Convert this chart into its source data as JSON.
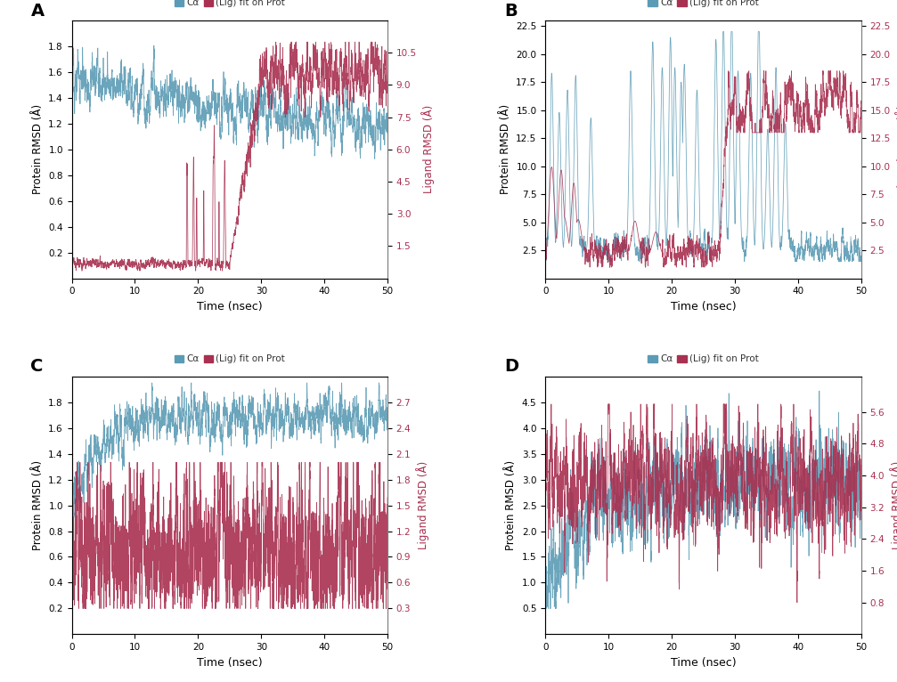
{
  "blue_color": "#5b9bb5",
  "red_color": "#a83050",
  "bg_color": "#ffffff",
  "spine_color": "#808080",
  "xlabel": "Time (nsec)",
  "ylabel_left": "Protein RMSD (Å)",
  "ylabel_right": "Ligand RMSD (Å)",
  "xlims": [
    0,
    50
  ],
  "panel_A": {
    "prot_ylim": [
      0.0,
      2.0
    ],
    "prot_yticks": [
      0.2,
      0.4,
      0.6,
      0.8,
      1.0,
      1.2,
      1.4,
      1.6,
      1.8
    ],
    "lig_ylim": [
      0.0,
      12.0
    ],
    "lig_yticks": [
      1.5,
      3.0,
      4.5,
      6.0,
      7.5,
      9.0,
      10.5
    ]
  },
  "panel_B": {
    "prot_ylim": [
      0.0,
      23.0
    ],
    "prot_yticks": [
      2.5,
      5.0,
      7.5,
      10.0,
      12.5,
      15.0,
      17.5,
      20.0,
      22.5
    ],
    "lig_ylim": [
      0.0,
      23.0
    ],
    "lig_yticks": [
      2.5,
      5.0,
      7.5,
      10.0,
      12.5,
      15.0,
      17.5,
      20.0,
      22.5
    ]
  },
  "panel_C": {
    "prot_ylim": [
      0.0,
      2.0
    ],
    "prot_yticks": [
      0.2,
      0.4,
      0.6,
      0.8,
      1.0,
      1.2,
      1.4,
      1.6,
      1.8
    ],
    "lig_ylim": [
      0.0,
      3.0
    ],
    "lig_yticks": [
      0.3,
      0.6,
      0.9,
      1.2,
      1.5,
      1.8,
      2.1,
      2.4,
      2.7
    ]
  },
  "panel_D": {
    "prot_ylim": [
      0.0,
      5.0
    ],
    "prot_yticks": [
      0.5,
      1.0,
      1.5,
      2.0,
      2.5,
      3.0,
      3.5,
      4.0,
      4.5
    ],
    "lig_ylim": [
      0.0,
      6.5
    ],
    "lig_yticks": [
      0.8,
      1.6,
      2.4,
      3.2,
      4.0,
      4.8,
      5.6
    ]
  }
}
